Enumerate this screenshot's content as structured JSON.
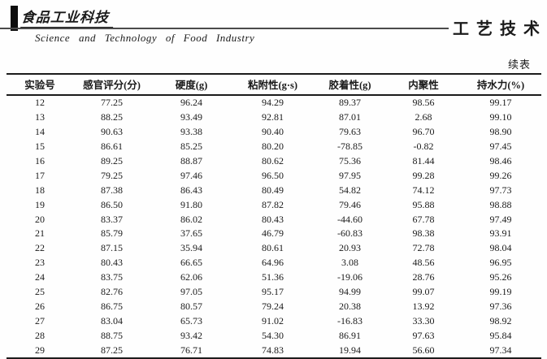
{
  "masthead": {
    "logo_text": "食品工业科技",
    "journal_name_en": "Science and Technology of Food Industry",
    "section_label": "工艺技术"
  },
  "table": {
    "continued_label": "续表",
    "columns": [
      "实验号",
      "感官评分(分)",
      "硬度(g)",
      "粘附性(g·s)",
      "胶着性(g)",
      "内聚性",
      "持水力(%)"
    ],
    "rows": [
      [
        "12",
        "77.25",
        "96.24",
        "94.29",
        "89.37",
        "98.56",
        "99.17"
      ],
      [
        "13",
        "88.25",
        "93.49",
        "92.81",
        "87.01",
        "2.68",
        "99.10"
      ],
      [
        "14",
        "90.63",
        "93.38",
        "90.40",
        "79.63",
        "96.70",
        "98.90"
      ],
      [
        "15",
        "86.61",
        "85.25",
        "80.20",
        "-78.85",
        "-0.82",
        "97.45"
      ],
      [
        "16",
        "89.25",
        "88.87",
        "80.62",
        "75.36",
        "81.44",
        "98.46"
      ],
      [
        "17",
        "79.25",
        "97.46",
        "96.50",
        "97.95",
        "99.28",
        "99.26"
      ],
      [
        "18",
        "87.38",
        "86.43",
        "80.49",
        "54.82",
        "74.12",
        "97.73"
      ],
      [
        "19",
        "86.50",
        "91.80",
        "87.82",
        "79.46",
        "95.88",
        "98.88"
      ],
      [
        "20",
        "83.37",
        "86.02",
        "80.43",
        "-44.60",
        "67.78",
        "97.49"
      ],
      [
        "21",
        "85.79",
        "37.65",
        "46.79",
        "-60.83",
        "98.38",
        "93.91"
      ],
      [
        "22",
        "87.15",
        "35.94",
        "80.61",
        "20.93",
        "72.78",
        "98.04"
      ],
      [
        "23",
        "80.43",
        "66.65",
        "64.96",
        "3.08",
        "48.56",
        "96.95"
      ],
      [
        "24",
        "83.75",
        "62.06",
        "51.36",
        "-19.06",
        "28.76",
        "95.26"
      ],
      [
        "25",
        "82.76",
        "97.05",
        "95.17",
        "94.99",
        "99.07",
        "99.19"
      ],
      [
        "26",
        "86.75",
        "80.57",
        "79.24",
        "20.38",
        "13.92",
        "97.36"
      ],
      [
        "27",
        "83.04",
        "65.73",
        "91.02",
        "-16.83",
        "33.30",
        "98.92"
      ],
      [
        "28",
        "88.75",
        "93.42",
        "54.30",
        "86.91",
        "97.63",
        "95.84"
      ],
      [
        "29",
        "87.25",
        "76.71",
        "74.83",
        "19.94",
        "56.60",
        "97.34"
      ]
    ]
  },
  "colors": {
    "ink": "#1a1a1a",
    "rule": "#4a4a4a",
    "background": "#fefefe"
  }
}
